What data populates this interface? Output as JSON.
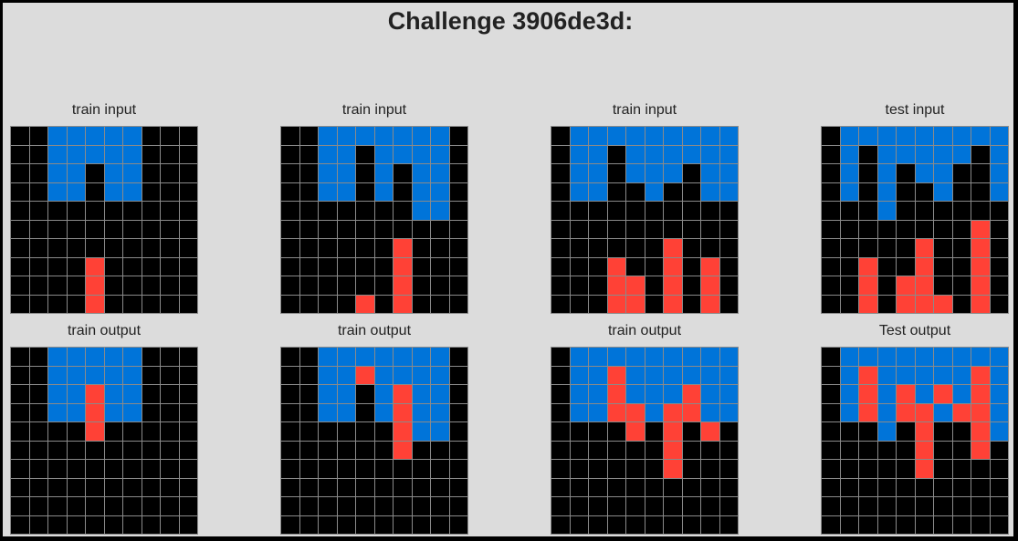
{
  "title": "Challenge 3906de3d:",
  "palette": {
    "0": "#000000",
    "1": "#0074D9",
    "2": "#FF4136"
  },
  "panels": [
    {
      "label": "train input",
      "grid": [
        [
          0,
          0,
          1,
          1,
          1,
          1,
          1,
          0,
          0,
          0
        ],
        [
          0,
          0,
          1,
          1,
          1,
          1,
          1,
          0,
          0,
          0
        ],
        [
          0,
          0,
          1,
          1,
          0,
          1,
          1,
          0,
          0,
          0
        ],
        [
          0,
          0,
          1,
          1,
          0,
          1,
          1,
          0,
          0,
          0
        ],
        [
          0,
          0,
          0,
          0,
          0,
          0,
          0,
          0,
          0,
          0
        ],
        [
          0,
          0,
          0,
          0,
          0,
          0,
          0,
          0,
          0,
          0
        ],
        [
          0,
          0,
          0,
          0,
          0,
          0,
          0,
          0,
          0,
          0
        ],
        [
          0,
          0,
          0,
          0,
          2,
          0,
          0,
          0,
          0,
          0
        ],
        [
          0,
          0,
          0,
          0,
          2,
          0,
          0,
          0,
          0,
          0
        ],
        [
          0,
          0,
          0,
          0,
          2,
          0,
          0,
          0,
          0,
          0
        ]
      ]
    },
    {
      "label": "train input",
      "grid": [
        [
          0,
          0,
          1,
          1,
          1,
          1,
          1,
          1,
          1,
          0
        ],
        [
          0,
          0,
          1,
          1,
          0,
          1,
          1,
          1,
          1,
          0
        ],
        [
          0,
          0,
          1,
          1,
          0,
          1,
          0,
          1,
          1,
          0
        ],
        [
          0,
          0,
          1,
          1,
          0,
          1,
          0,
          1,
          1,
          0
        ],
        [
          0,
          0,
          0,
          0,
          0,
          0,
          0,
          1,
          1,
          0
        ],
        [
          0,
          0,
          0,
          0,
          0,
          0,
          0,
          0,
          0,
          0
        ],
        [
          0,
          0,
          0,
          0,
          0,
          0,
          2,
          0,
          0,
          0
        ],
        [
          0,
          0,
          0,
          0,
          0,
          0,
          2,
          0,
          0,
          0
        ],
        [
          0,
          0,
          0,
          0,
          0,
          0,
          2,
          0,
          0,
          0
        ],
        [
          0,
          0,
          0,
          0,
          2,
          0,
          2,
          0,
          0,
          0
        ]
      ]
    },
    {
      "label": "train input",
      "grid": [
        [
          0,
          1,
          1,
          1,
          1,
          1,
          1,
          1,
          1,
          1
        ],
        [
          0,
          1,
          1,
          0,
          1,
          1,
          1,
          1,
          1,
          1
        ],
        [
          0,
          1,
          1,
          0,
          1,
          1,
          1,
          0,
          1,
          1
        ],
        [
          0,
          1,
          1,
          0,
          0,
          1,
          0,
          0,
          1,
          1
        ],
        [
          0,
          0,
          0,
          0,
          0,
          0,
          0,
          0,
          0,
          0
        ],
        [
          0,
          0,
          0,
          0,
          0,
          0,
          0,
          0,
          0,
          0
        ],
        [
          0,
          0,
          0,
          0,
          0,
          0,
          2,
          0,
          0,
          0
        ],
        [
          0,
          0,
          0,
          2,
          0,
          0,
          2,
          0,
          2,
          0
        ],
        [
          0,
          0,
          0,
          2,
          2,
          0,
          2,
          0,
          2,
          0
        ],
        [
          0,
          0,
          0,
          2,
          2,
          0,
          2,
          0,
          2,
          0
        ]
      ]
    },
    {
      "label": "test input",
      "grid": [
        [
          0,
          1,
          1,
          1,
          1,
          1,
          1,
          1,
          1,
          1
        ],
        [
          0,
          1,
          0,
          1,
          1,
          1,
          1,
          1,
          0,
          1
        ],
        [
          0,
          1,
          0,
          1,
          0,
          1,
          1,
          0,
          0,
          1
        ],
        [
          0,
          1,
          0,
          1,
          0,
          0,
          1,
          0,
          0,
          1
        ],
        [
          0,
          0,
          0,
          1,
          0,
          0,
          0,
          0,
          0,
          0
        ],
        [
          0,
          0,
          0,
          0,
          0,
          0,
          0,
          0,
          2,
          0
        ],
        [
          0,
          0,
          0,
          0,
          0,
          2,
          0,
          0,
          2,
          0
        ],
        [
          0,
          0,
          2,
          0,
          0,
          2,
          0,
          0,
          2,
          0
        ],
        [
          0,
          0,
          2,
          0,
          2,
          2,
          0,
          0,
          2,
          0
        ],
        [
          0,
          0,
          2,
          0,
          2,
          2,
          2,
          0,
          2,
          0
        ]
      ]
    },
    {
      "label": "train output",
      "grid": [
        [
          0,
          0,
          1,
          1,
          1,
          1,
          1,
          0,
          0,
          0
        ],
        [
          0,
          0,
          1,
          1,
          1,
          1,
          1,
          0,
          0,
          0
        ],
        [
          0,
          0,
          1,
          1,
          2,
          1,
          1,
          0,
          0,
          0
        ],
        [
          0,
          0,
          1,
          1,
          2,
          1,
          1,
          0,
          0,
          0
        ],
        [
          0,
          0,
          0,
          0,
          2,
          0,
          0,
          0,
          0,
          0
        ],
        [
          0,
          0,
          0,
          0,
          0,
          0,
          0,
          0,
          0,
          0
        ],
        [
          0,
          0,
          0,
          0,
          0,
          0,
          0,
          0,
          0,
          0
        ],
        [
          0,
          0,
          0,
          0,
          0,
          0,
          0,
          0,
          0,
          0
        ],
        [
          0,
          0,
          0,
          0,
          0,
          0,
          0,
          0,
          0,
          0
        ],
        [
          0,
          0,
          0,
          0,
          0,
          0,
          0,
          0,
          0,
          0
        ]
      ]
    },
    {
      "label": "train output",
      "grid": [
        [
          0,
          0,
          1,
          1,
          1,
          1,
          1,
          1,
          1,
          0
        ],
        [
          0,
          0,
          1,
          1,
          2,
          1,
          1,
          1,
          1,
          0
        ],
        [
          0,
          0,
          1,
          1,
          0,
          1,
          2,
          1,
          1,
          0
        ],
        [
          0,
          0,
          1,
          1,
          0,
          1,
          2,
          1,
          1,
          0
        ],
        [
          0,
          0,
          0,
          0,
          0,
          0,
          2,
          1,
          1,
          0
        ],
        [
          0,
          0,
          0,
          0,
          0,
          0,
          2,
          0,
          0,
          0
        ],
        [
          0,
          0,
          0,
          0,
          0,
          0,
          0,
          0,
          0,
          0
        ],
        [
          0,
          0,
          0,
          0,
          0,
          0,
          0,
          0,
          0,
          0
        ],
        [
          0,
          0,
          0,
          0,
          0,
          0,
          0,
          0,
          0,
          0
        ],
        [
          0,
          0,
          0,
          0,
          0,
          0,
          0,
          0,
          0,
          0
        ]
      ]
    },
    {
      "label": "train output",
      "grid": [
        [
          0,
          1,
          1,
          1,
          1,
          1,
          1,
          1,
          1,
          1
        ],
        [
          0,
          1,
          1,
          2,
          1,
          1,
          1,
          1,
          1,
          1
        ],
        [
          0,
          1,
          1,
          2,
          1,
          1,
          1,
          2,
          1,
          1
        ],
        [
          0,
          1,
          1,
          2,
          2,
          1,
          2,
          2,
          1,
          1
        ],
        [
          0,
          0,
          0,
          0,
          2,
          0,
          2,
          0,
          2,
          0
        ],
        [
          0,
          0,
          0,
          0,
          0,
          0,
          2,
          0,
          0,
          0
        ],
        [
          0,
          0,
          0,
          0,
          0,
          0,
          2,
          0,
          0,
          0
        ],
        [
          0,
          0,
          0,
          0,
          0,
          0,
          0,
          0,
          0,
          0
        ],
        [
          0,
          0,
          0,
          0,
          0,
          0,
          0,
          0,
          0,
          0
        ],
        [
          0,
          0,
          0,
          0,
          0,
          0,
          0,
          0,
          0,
          0
        ]
      ]
    },
    {
      "label": "Test output",
      "grid": [
        [
          0,
          1,
          1,
          1,
          1,
          1,
          1,
          1,
          1,
          1
        ],
        [
          0,
          1,
          2,
          1,
          1,
          1,
          1,
          1,
          2,
          1
        ],
        [
          0,
          1,
          2,
          1,
          2,
          1,
          2,
          1,
          2,
          1
        ],
        [
          0,
          1,
          2,
          1,
          2,
          2,
          1,
          2,
          2,
          1
        ],
        [
          0,
          0,
          0,
          1,
          0,
          2,
          0,
          0,
          2,
          1
        ],
        [
          0,
          0,
          0,
          0,
          0,
          2,
          0,
          0,
          2,
          0
        ],
        [
          0,
          0,
          0,
          0,
          0,
          2,
          0,
          0,
          0,
          0
        ],
        [
          0,
          0,
          0,
          0,
          0,
          0,
          0,
          0,
          0,
          0
        ],
        [
          0,
          0,
          0,
          0,
          0,
          0,
          0,
          0,
          0,
          0
        ],
        [
          0,
          0,
          0,
          0,
          0,
          0,
          0,
          0,
          0,
          0
        ]
      ]
    }
  ]
}
